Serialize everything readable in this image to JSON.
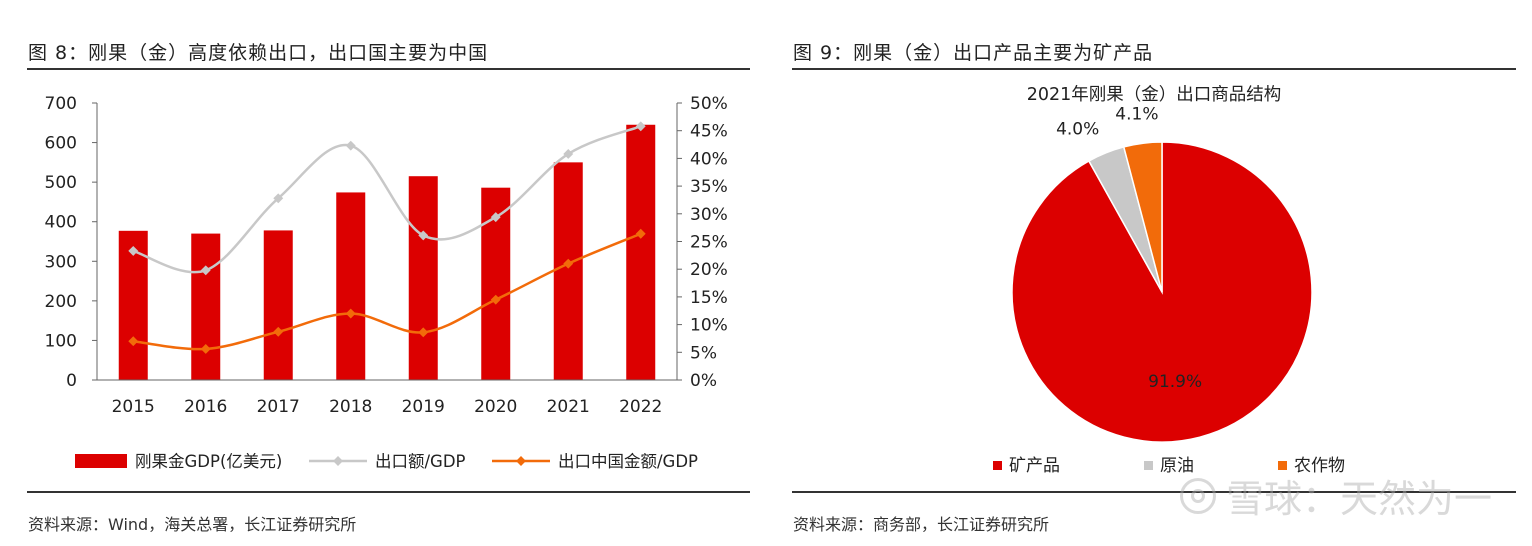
{
  "left": {
    "figure_title": "图 8：刚果（金）高度依赖出口，出口国主要为中国",
    "source": "资料来源：Wind，海关总署，长江证券研究所"
  },
  "right": {
    "figure_title": "图 9：刚果（金）出口产品主要为矿产品",
    "source": "资料来源：商务部，长江证券研究所"
  },
  "watermark": {
    "text": "雪球：天然为一"
  },
  "colors": {
    "red": "#dc0000",
    "gray": "#c8c8c8",
    "orange": "#f26b0a",
    "text": "#222222"
  },
  "chart_data": [
    {
      "type": "bar",
      "categories": [
        "2015",
        "2016",
        "2017",
        "2018",
        "2019",
        "2020",
        "2021",
        "2022"
      ],
      "series": [
        {
          "name": "刚果金GDP(亿美元)",
          "kind": "bar",
          "axis": "left",
          "values": [
            377,
            370,
            378,
            474,
            515,
            486,
            550,
            645
          ]
        },
        {
          "name": "出口额/GDP",
          "kind": "line",
          "axis": "right",
          "values": [
            23.3,
            19.8,
            32.8,
            42.3,
            26.1,
            29.4,
            40.8,
            45.8
          ]
        },
        {
          "name": "出口中国金额/GDP",
          "kind": "line",
          "axis": "right",
          "values": [
            7.0,
            5.6,
            8.7,
            12.0,
            8.6,
            14.5,
            21.0,
            26.4
          ]
        }
      ],
      "ylim": [
        0,
        700
      ],
      "yticks": [
        "0",
        "100",
        "200",
        "300",
        "400",
        "500",
        "600",
        "700"
      ],
      "y2lim": [
        0,
        50
      ],
      "y2ticks": [
        "0%",
        "5%",
        "10%",
        "15%",
        "20%",
        "25%",
        "30%",
        "35%",
        "40%",
        "45%",
        "50%"
      ],
      "xlabel": "",
      "ylabel": "",
      "legend": "bottom"
    },
    {
      "type": "pie",
      "title": "2021年刚果（金）出口商品结构",
      "labels": [
        "矿产品",
        "原油",
        "农作物"
      ],
      "values": [
        91.9,
        4.0,
        4.1
      ],
      "value_labels": [
        "91.9%",
        "4.0%",
        "4.1%"
      ],
      "legend": "bottom"
    }
  ]
}
